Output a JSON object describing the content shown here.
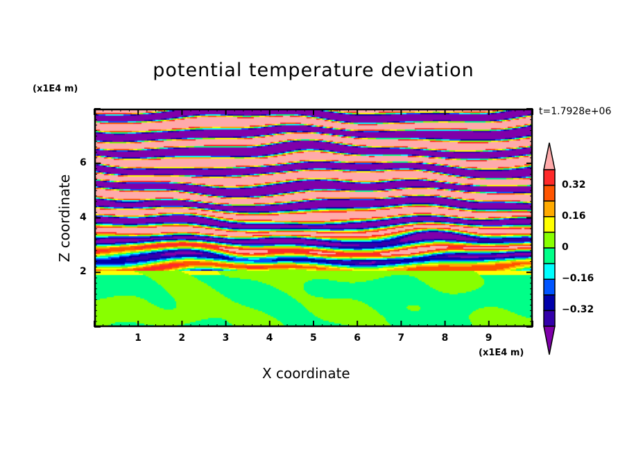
{
  "chart_data": {
    "type": "heatmap",
    "title": "potential temperature deviation",
    "xlabel": "X coordinate",
    "ylabel": "Z coordinate",
    "x_unit": "(x1E4 m)",
    "y_unit": "(x1E4 m)",
    "time_label": "t=1.7928e+06",
    "xlim": [
      0,
      10
    ],
    "ylim": [
      0,
      8
    ],
    "x_ticks": [
      "1",
      "2",
      "3",
      "4",
      "5",
      "6",
      "7",
      "8",
      "9"
    ],
    "x_tick_values": [
      1,
      2,
      3,
      4,
      5,
      6,
      7,
      8,
      9
    ],
    "y_ticks": [
      "2",
      "4",
      "6"
    ],
    "y_tick_values": [
      2,
      4,
      6
    ],
    "colorbar": {
      "levels": [
        -0.4,
        -0.32,
        -0.24,
        -0.16,
        -0.08,
        0,
        0.08,
        0.16,
        0.24,
        0.32,
        0.4
      ],
      "labels": [
        "0.32",
        "0.16",
        "0",
        "-0.16",
        "-0.32"
      ],
      "label_values": [
        0.32,
        0.16,
        0,
        -0.16,
        -0.32
      ],
      "colors": [
        "#7f00aa",
        "#3300aa",
        "#0000aa",
        "#0055ff",
        "#00ffff",
        "#00ff88",
        "#88ff00",
        "#ffff00",
        "#ffaa00",
        "#ff5500",
        "#ff2a2a",
        "#ffaaaa"
      ]
    },
    "description_regions": "z<2: values 0 to 0.08; 2-4.5: mixed; z>4.5: alternating extremes"
  }
}
